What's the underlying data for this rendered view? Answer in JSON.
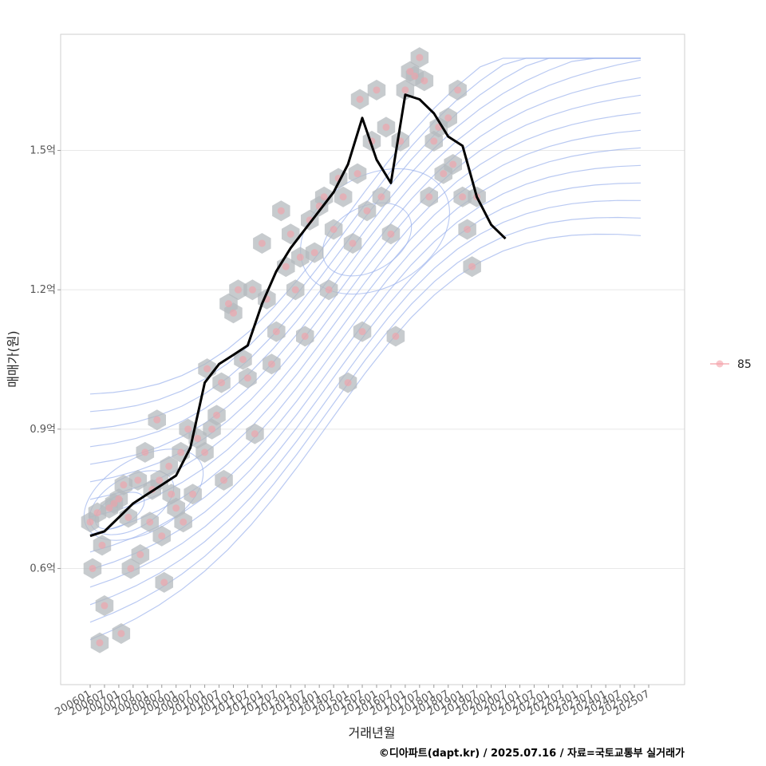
{
  "chart_data": {
    "type": "scatter",
    "xlabel": "거래년월",
    "ylabel": "매매가(원)",
    "caption": "©디아파트(dapt.kr) / 2025.07.16 / 자료=국토교통부 실거래가",
    "x_range": [
      "2006-01",
      "2025-07"
    ],
    "x_ticks": [
      "200601",
      "200607",
      "200701",
      "200707",
      "200801",
      "200807",
      "200901",
      "200907",
      "201001",
      "201007",
      "201101",
      "201107",
      "201201",
      "201207",
      "201301",
      "201307",
      "201401",
      "201407",
      "201501",
      "201507",
      "201601",
      "201607",
      "201701",
      "201707",
      "201801",
      "201807",
      "201901",
      "201907",
      "202001",
      "202007",
      "202101",
      "202107",
      "202201",
      "202207",
      "202301",
      "202307",
      "202401",
      "202407",
      "202501",
      "202507"
    ],
    "y_unit": "억",
    "ylim": [
      0.35,
      1.75
    ],
    "y_ticks": [
      {
        "value": 0.6,
        "label": "0.6억"
      },
      {
        "value": 0.9,
        "label": "0.9억"
      },
      {
        "value": 1.2,
        "label": "1.2억"
      },
      {
        "value": 1.5,
        "label": "1.5억"
      }
    ],
    "grid": true,
    "legend": {
      "position": "right",
      "entries": [
        {
          "label": "85",
          "color": "#f4a0a8"
        }
      ]
    },
    "colors": {
      "points": "#f4a0a8",
      "hex": "#b4b9be",
      "contour": "#9bb2ec",
      "line": "#000000",
      "grid": "#e8e8e8",
      "frame": "#cfcfcf"
    },
    "series": [
      {
        "name": "85",
        "kind": "points",
        "points": [
          [
            "2006-01",
            0.7
          ],
          [
            "2006-02",
            0.6
          ],
          [
            "2006-04",
            0.72
          ],
          [
            "2006-05",
            0.44
          ],
          [
            "2006-06",
            0.65
          ],
          [
            "2006-07",
            0.52
          ],
          [
            "2006-09",
            0.73
          ],
          [
            "2006-11",
            0.74
          ],
          [
            "2007-01",
            0.75
          ],
          [
            "2007-02",
            0.46
          ],
          [
            "2007-03",
            0.78
          ],
          [
            "2007-05",
            0.71
          ],
          [
            "2007-06",
            0.6
          ],
          [
            "2007-09",
            0.79
          ],
          [
            "2007-10",
            0.63
          ],
          [
            "2007-12",
            0.85
          ],
          [
            "2008-02",
            0.7
          ],
          [
            "2008-03",
            0.77
          ],
          [
            "2008-05",
            0.92
          ],
          [
            "2008-06",
            0.79
          ],
          [
            "2008-07",
            0.67
          ],
          [
            "2008-08",
            0.57
          ],
          [
            "2008-10",
            0.82
          ],
          [
            "2008-11",
            0.76
          ],
          [
            "2009-01",
            0.73
          ],
          [
            "2009-03",
            0.85
          ],
          [
            "2009-04",
            0.7
          ],
          [
            "2009-06",
            0.9
          ],
          [
            "2009-08",
            0.76
          ],
          [
            "2009-10",
            0.88
          ],
          [
            "2010-01",
            0.85
          ],
          [
            "2010-02",
            1.03
          ],
          [
            "2010-04",
            0.9
          ],
          [
            "2010-06",
            0.93
          ],
          [
            "2010-08",
            1.0
          ],
          [
            "2010-09",
            0.79
          ],
          [
            "2010-11",
            1.17
          ],
          [
            "2011-01",
            1.15
          ],
          [
            "2011-03",
            1.2
          ],
          [
            "2011-05",
            1.05
          ],
          [
            "2011-07",
            1.01
          ],
          [
            "2011-09",
            1.2
          ],
          [
            "2011-10",
            0.89
          ],
          [
            "2012-01",
            1.3
          ],
          [
            "2012-03",
            1.18
          ],
          [
            "2012-05",
            1.04
          ],
          [
            "2012-07",
            1.11
          ],
          [
            "2012-09",
            1.37
          ],
          [
            "2012-11",
            1.25
          ],
          [
            "2013-01",
            1.32
          ],
          [
            "2013-03",
            1.2
          ],
          [
            "2013-05",
            1.27
          ],
          [
            "2013-07",
            1.1
          ],
          [
            "2013-09",
            1.35
          ],
          [
            "2013-11",
            1.28
          ],
          [
            "2014-01",
            1.38
          ],
          [
            "2014-03",
            1.4
          ],
          [
            "2014-05",
            1.2
          ],
          [
            "2014-07",
            1.33
          ],
          [
            "2014-09",
            1.44
          ],
          [
            "2014-11",
            1.4
          ],
          [
            "2015-01",
            1.0
          ],
          [
            "2015-03",
            1.3
          ],
          [
            "2015-05",
            1.45
          ],
          [
            "2015-06",
            1.61
          ],
          [
            "2015-07",
            1.11
          ],
          [
            "2015-09",
            1.37
          ],
          [
            "2015-11",
            1.52
          ],
          [
            "2016-01",
            1.63
          ],
          [
            "2016-03",
            1.4
          ],
          [
            "2016-05",
            1.55
          ],
          [
            "2016-07",
            1.32
          ],
          [
            "2016-09",
            1.1
          ],
          [
            "2016-11",
            1.52
          ],
          [
            "2017-01",
            1.63
          ],
          [
            "2017-03",
            1.67
          ],
          [
            "2017-05",
            1.66
          ],
          [
            "2017-07",
            1.7
          ],
          [
            "2017-09",
            1.65
          ],
          [
            "2017-11",
            1.4
          ],
          [
            "2018-01",
            1.52
          ],
          [
            "2018-03",
            1.55
          ],
          [
            "2018-05",
            1.45
          ],
          [
            "2018-07",
            1.57
          ],
          [
            "2018-09",
            1.47
          ],
          [
            "2018-11",
            1.63
          ],
          [
            "2019-01",
            1.4
          ],
          [
            "2019-03",
            1.33
          ],
          [
            "2019-05",
            1.25
          ],
          [
            "2019-07",
            1.4
          ]
        ]
      },
      {
        "name": "",
        "kind": "line",
        "points": [
          [
            "2006-01",
            0.67
          ],
          [
            "2006-07",
            0.68
          ],
          [
            "2007-01",
            0.71
          ],
          [
            "2007-07",
            0.74
          ],
          [
            "2008-01",
            0.76
          ],
          [
            "2008-07",
            0.78
          ],
          [
            "2009-01",
            0.8
          ],
          [
            "2009-07",
            0.86
          ],
          [
            "2010-01",
            1.0
          ],
          [
            "2010-07",
            1.04
          ],
          [
            "2011-01",
            1.06
          ],
          [
            "2011-07",
            1.08
          ],
          [
            "2012-01",
            1.17
          ],
          [
            "2012-07",
            1.24
          ],
          [
            "2013-01",
            1.29
          ],
          [
            "2013-07",
            1.33
          ],
          [
            "2014-01",
            1.37
          ],
          [
            "2014-07",
            1.41
          ],
          [
            "2015-01",
            1.47
          ],
          [
            "2015-07",
            1.57
          ],
          [
            "2016-01",
            1.48
          ],
          [
            "2016-07",
            1.43
          ],
          [
            "2017-01",
            1.62
          ],
          [
            "2017-07",
            1.61
          ],
          [
            "2018-01",
            1.58
          ],
          [
            "2018-07",
            1.53
          ],
          [
            "2019-01",
            1.51
          ],
          [
            "2019-07",
            1.4
          ],
          [
            "2020-01",
            1.34
          ],
          [
            "2020-07",
            1.31
          ]
        ]
      }
    ]
  }
}
